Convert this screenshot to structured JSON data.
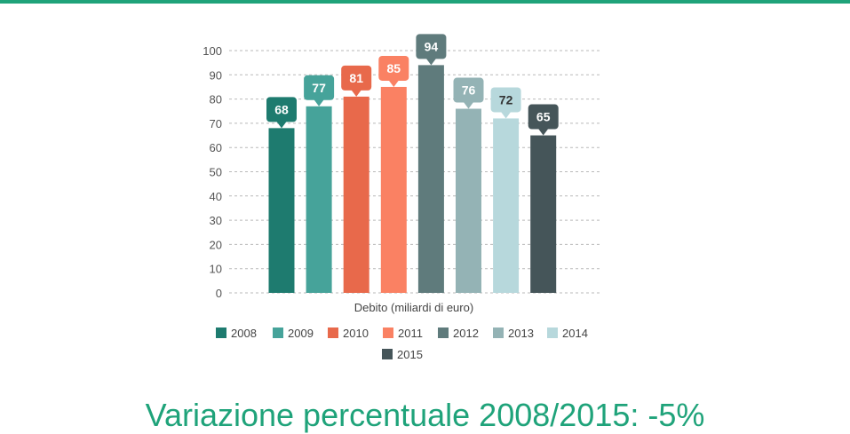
{
  "colors": {
    "accent": "#1fa37a",
    "grid": "#b9b9b9",
    "tick_text": "#555555",
    "label_text": "#444444",
    "series": [
      "#1e7b6f",
      "#46a39a",
      "#e8694b",
      "#fa8163",
      "#5f7b7c",
      "#94b3b5",
      "#b7d8dc",
      "#455559"
    ]
  },
  "caption": "Variazione percentuale 2008/2015: -5%",
  "chart_data": {
    "type": "bar",
    "title": "",
    "xlabel": "Debito (miliardi di euro)",
    "ylabel": "",
    "ylim": [
      0,
      100
    ],
    "yticks": [
      "0",
      "10",
      "20",
      "30",
      "40",
      "50",
      "60",
      "70",
      "80",
      "90",
      "100"
    ],
    "grid": true,
    "legend_position": "bottom",
    "series": [
      {
        "name": "2008",
        "value": 68,
        "label": "68",
        "label_style": "light"
      },
      {
        "name": "2009",
        "value": 77,
        "label": "77",
        "label_style": "light"
      },
      {
        "name": "2010",
        "value": 81,
        "label": "81",
        "label_style": "light"
      },
      {
        "name": "2011",
        "value": 85,
        "label": "85",
        "label_style": "light"
      },
      {
        "name": "2012",
        "value": 94,
        "label": "94",
        "label_style": "light"
      },
      {
        "name": "2013",
        "value": 76,
        "label": "76",
        "label_style": "light"
      },
      {
        "name": "2014",
        "value": 72,
        "label": "72",
        "label_style": "dark"
      },
      {
        "name": "2015",
        "value": 65,
        "label": "65",
        "label_style": "light"
      }
    ]
  }
}
